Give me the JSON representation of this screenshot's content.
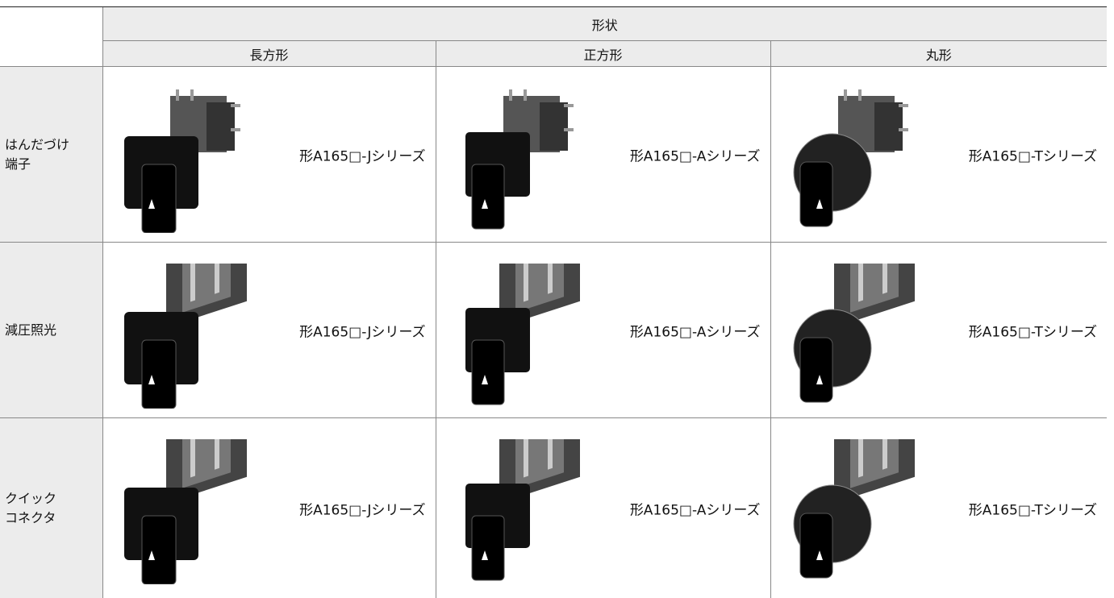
{
  "table": {
    "header": {
      "title": "形状",
      "columns": [
        "長方形",
        "正方形",
        "丸形"
      ]
    },
    "rows": [
      {
        "label": [
          "はんだづけ",
          "端子"
        ],
        "cells": [
          "形A165□-Jシリーズ",
          "形A165□-Aシリーズ",
          "形A165□-Tシリーズ"
        ]
      },
      {
        "label": [
          "減圧照光"
        ],
        "cells": [
          "形A165□-Jシリーズ",
          "形A165□-Aシリーズ",
          "形A165□-Tシリーズ"
        ]
      },
      {
        "label": [
          "クイック",
          "コネクタ"
        ],
        "cells": [
          "形A165□-Jシリーズ",
          "形A165□-Aシリーズ",
          "形A165□-Tシリーズ"
        ]
      }
    ]
  }
}
